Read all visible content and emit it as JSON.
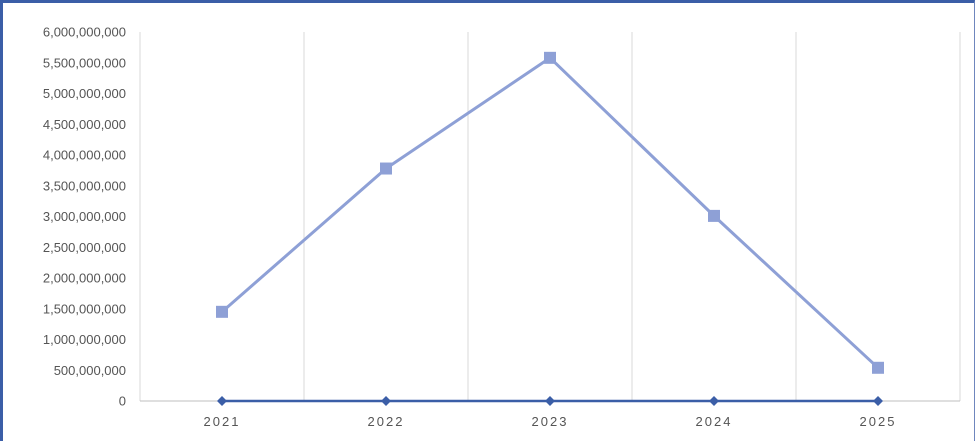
{
  "chart_data": {
    "type": "line",
    "title": "",
    "xlabel": "",
    "ylabel": "",
    "categories": [
      "2021",
      "2022",
      "2023",
      "2024",
      "2025"
    ],
    "ylim": [
      0,
      6000000000
    ],
    "y_ticks": [
      0,
      500000000,
      1000000000,
      1500000000,
      2000000000,
      2500000000,
      3000000000,
      3500000000,
      4000000000,
      4500000000,
      5000000000,
      5500000000,
      6000000000
    ],
    "y_tick_labels": [
      "0",
      "500,000,000",
      "1,000,000,000",
      "1,500,000,000",
      "2,000,000,000",
      "2,500,000,000",
      "3,000,000,000",
      "3,500,000,000",
      "4,000,000,000",
      "4,500,000,000",
      "5,000,000,000",
      "5,500,000,000",
      "6,000,000,000"
    ],
    "grid": "vertical",
    "legend": "none",
    "series": [
      {
        "values": [
          1450000000,
          3780000000,
          5580000000,
          3010000000,
          540000000
        ],
        "color": "#8ea0d6",
        "marker": "square"
      },
      {
        "values": [
          0,
          0,
          0,
          0,
          0
        ],
        "color": "#3b5ea7",
        "marker": "diamond"
      }
    ]
  }
}
